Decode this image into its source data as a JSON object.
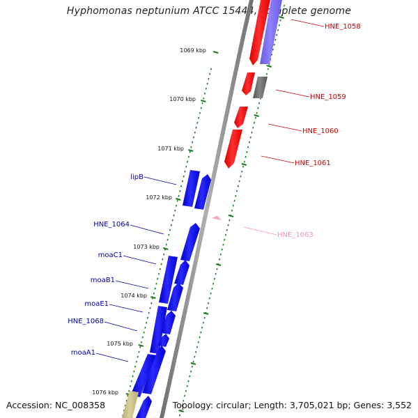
{
  "title": "Hyphomonas neptunium ATCC 15444, complete genome",
  "footer": {
    "accession": "Accession: NC_008358",
    "topology": "Topology: circular; Length: 3,705,021 bp; Genes: 3,552"
  },
  "colors": {
    "backbone": "#8a8a8a",
    "tick": "#1a7a1a",
    "forward_gene": "#0000ee",
    "reverse_gene": "#ee0000",
    "rna_gene": "#7b68ee",
    "pseudo_gene": "#666666",
    "misc_feature": "#f4a3c8",
    "other_feature": "#c8bf86"
  },
  "kbp_labels": [
    "1069 kbp",
    "1070 kbp",
    "1071 kbp",
    "1072 kbp",
    "1073 kbp",
    "1074 kbp",
    "1075 kbp",
    "1076 kbp"
  ],
  "genes_left": [
    {
      "label": "lipB",
      "color": "#0000aa"
    },
    {
      "label": "HNE_1064",
      "color": "#0000aa"
    },
    {
      "label": "moaC1",
      "color": "#0000aa"
    },
    {
      "label": "moaB1",
      "color": "#0000aa"
    },
    {
      "label": "moaE1",
      "color": "#0000aa"
    },
    {
      "label": "HNE_1068",
      "color": "#0000aa"
    },
    {
      "label": "moaA1",
      "color": "#0000aa"
    }
  ],
  "genes_right": [
    {
      "label": "HNE_1058",
      "color": "#cc0000"
    },
    {
      "label": "HNE_1059",
      "color": "#cc0000"
    },
    {
      "label": "HNE_1060",
      "color": "#cc0000"
    },
    {
      "label": "HNE_1061",
      "color": "#cc0000"
    },
    {
      "label": "HNE_1063",
      "color": "#f090b8"
    }
  ]
}
